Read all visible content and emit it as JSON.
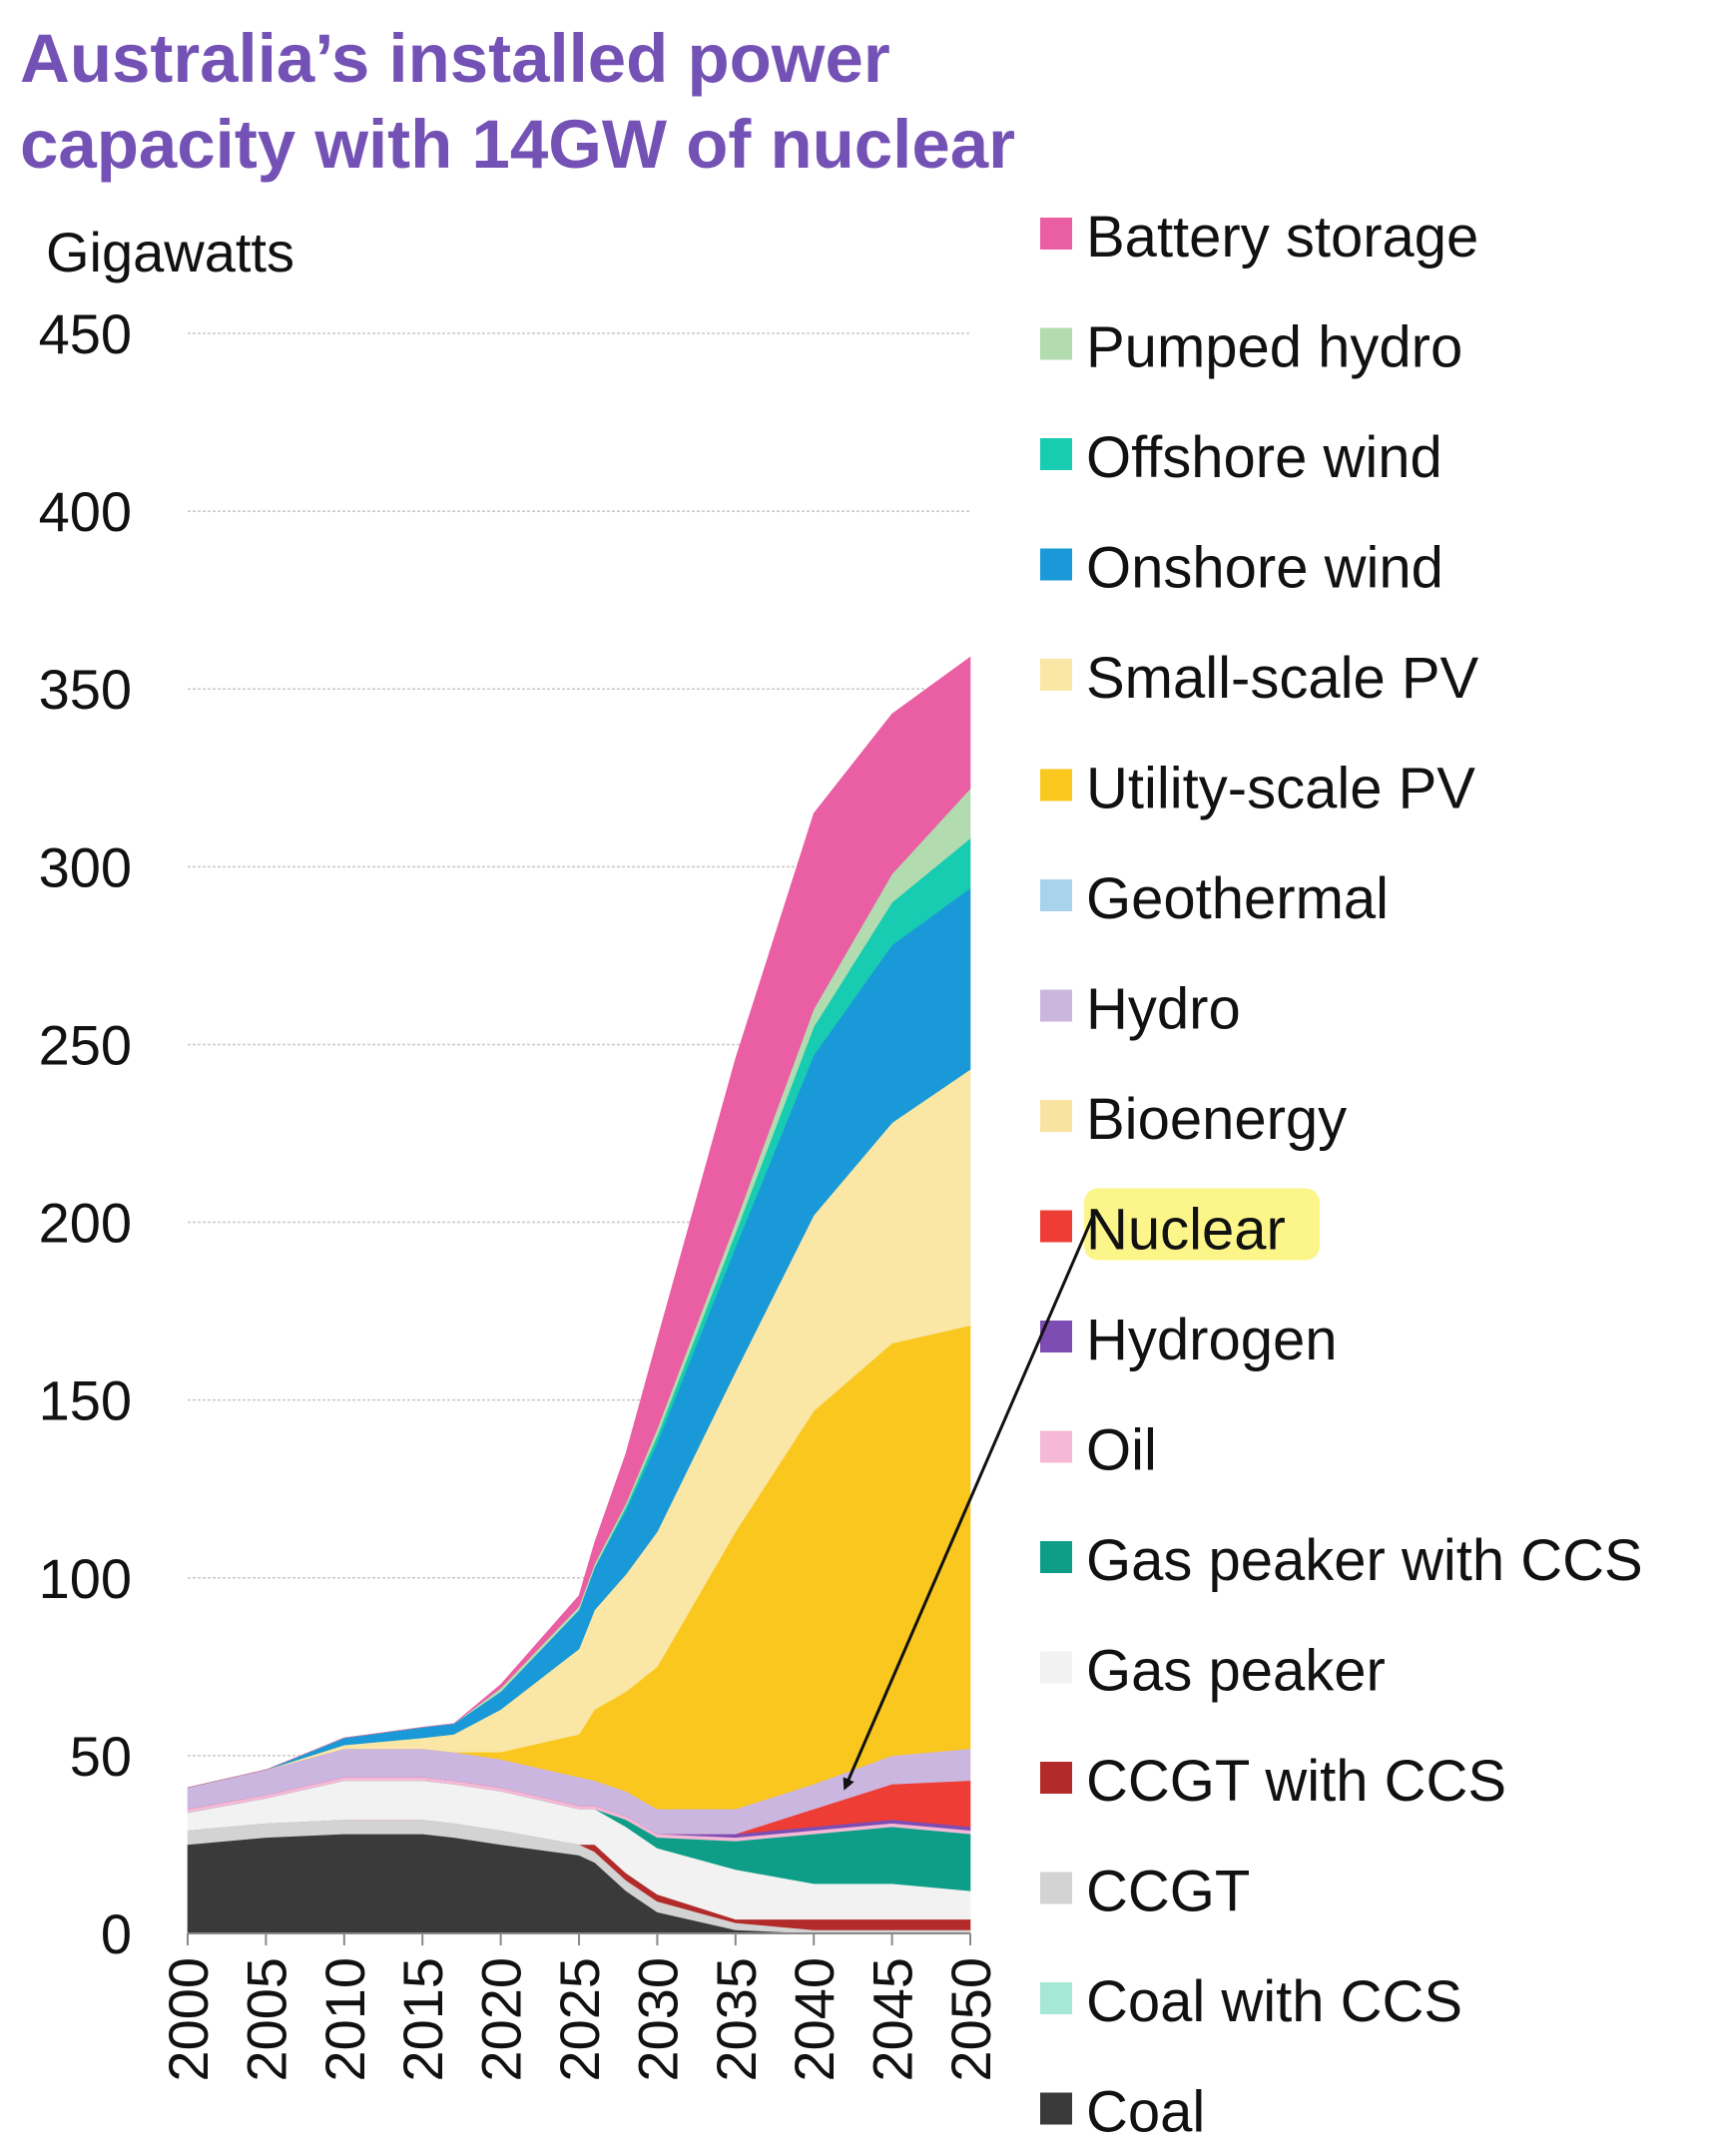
{
  "chart_data": {
    "type": "area",
    "title": "Australia’s installed power capacity with 14GW of nuclear",
    "ylabel": "Gigawatts",
    "xlabel": "",
    "ylim": [
      0,
      450
    ],
    "yticks": [
      0,
      50,
      100,
      150,
      200,
      250,
      300,
      350,
      400,
      450
    ],
    "xlim": [
      2000,
      2050
    ],
    "xticks": [
      2000,
      2005,
      2010,
      2015,
      2020,
      2025,
      2030,
      2035,
      2040,
      2045,
      2050
    ],
    "grid": true,
    "legend_position": "right",
    "stacked": true,
    "annotation": {
      "highlighted": "Nuclear",
      "arrow_to": {
        "x": 2042,
        "y": 41
      }
    },
    "x": [
      2000,
      2005,
      2010,
      2015,
      2017,
      2020,
      2025,
      2026,
      2028,
      2030,
      2035,
      2040,
      2045,
      2050
    ],
    "series": [
      {
        "name": "Coal",
        "color": "#3a3a3a",
        "values": [
          25,
          27,
          28,
          28,
          27,
          25,
          22,
          20,
          12,
          6,
          1,
          0,
          0,
          0
        ]
      },
      {
        "name": "Coal with CCS",
        "color": "#a6e8d6",
        "values": [
          0,
          0,
          0,
          0,
          0,
          0,
          0,
          0,
          0,
          0,
          0,
          0,
          0,
          0
        ]
      },
      {
        "name": "CCGT",
        "color": "#d3d3d3",
        "values": [
          4,
          4,
          4,
          4,
          4,
          4,
          3,
          3,
          3,
          3,
          2,
          1,
          1,
          1
        ]
      },
      {
        "name": "CCGT with CCS",
        "color": "#b22a2a",
        "values": [
          0,
          0,
          0,
          0,
          0,
          0,
          0,
          2,
          2,
          2,
          1,
          3,
          3,
          3
        ]
      },
      {
        "name": "Gas peaker",
        "color": "#f2f2f2",
        "values": [
          5,
          7,
          11,
          11,
          11,
          11,
          10,
          10,
          13,
          13,
          14,
          10,
          10,
          8
        ]
      },
      {
        "name": "Gas peaker with CCS",
        "color": "#0e9e88",
        "values": [
          0,
          0,
          0,
          0,
          0,
          0,
          0,
          0,
          2,
          3,
          8,
          14,
          16,
          16
        ]
      },
      {
        "name": "Oil",
        "color": "#f5b8d6",
        "values": [
          1,
          1,
          1,
          1,
          1,
          1,
          1,
          1,
          1,
          1,
          1,
          1,
          1,
          1
        ]
      },
      {
        "name": "Hydrogen",
        "color": "#7d4db3",
        "values": [
          0,
          0,
          0,
          0,
          0,
          0,
          0,
          0,
          0,
          0,
          1,
          1,
          1,
          1
        ]
      },
      {
        "name": "Nuclear",
        "color": "#ee3d35",
        "values": [
          0,
          0,
          0,
          0,
          0,
          0,
          0,
          0,
          0,
          0,
          0,
          5,
          10,
          13
        ]
      },
      {
        "name": "Bioenergy",
        "color": "#f8e3a0",
        "values": [
          0,
          0,
          0,
          0,
          0,
          0,
          0,
          0,
          0,
          0,
          0,
          0,
          0,
          0
        ]
      },
      {
        "name": "Hydro",
        "color": "#cbb6e0",
        "values": [
          6,
          7,
          8,
          8,
          8,
          8,
          8,
          7,
          7,
          7,
          7,
          7,
          8,
          9
        ]
      },
      {
        "name": "Geothermal",
        "color": "#a9d3ec",
        "values": [
          0,
          0,
          0,
          0,
          0,
          0,
          0,
          0,
          0,
          0,
          0,
          0,
          0,
          0
        ]
      },
      {
        "name": "Utility-scale PV",
        "color": "#fac71f",
        "values": [
          0,
          0,
          0,
          0,
          0,
          2,
          12,
          20,
          28,
          40,
          78,
          105,
          116,
          119
        ]
      },
      {
        "name": "Small-scale PV",
        "color": "#fae6a5",
        "values": [
          0,
          0,
          1,
          3,
          5,
          12,
          24,
          28,
          33,
          38,
          45,
          55,
          62,
          72
        ]
      },
      {
        "name": "Onshore wind",
        "color": "#1a99d8",
        "values": [
          0,
          0,
          2,
          3,
          3,
          5,
          11,
          12,
          18,
          25,
          35,
          45,
          50,
          51
        ]
      },
      {
        "name": "Offshore wind",
        "color": "#17ccb0",
        "values": [
          0,
          0,
          0,
          0,
          0,
          0,
          0,
          0,
          1,
          2,
          4,
          8,
          12,
          14
        ]
      },
      {
        "name": "Pumped hydro",
        "color": "#b3dbb0",
        "values": [
          0,
          0,
          0,
          0,
          0,
          1,
          1,
          1,
          1,
          2,
          3,
          5,
          8,
          14
        ]
      },
      {
        "name": "Battery storage",
        "color": "#ea5ea3",
        "values": [
          0,
          0,
          0,
          0,
          0,
          1,
          3,
          6,
          14,
          25,
          46,
          55,
          45,
          37
        ]
      }
    ]
  }
}
